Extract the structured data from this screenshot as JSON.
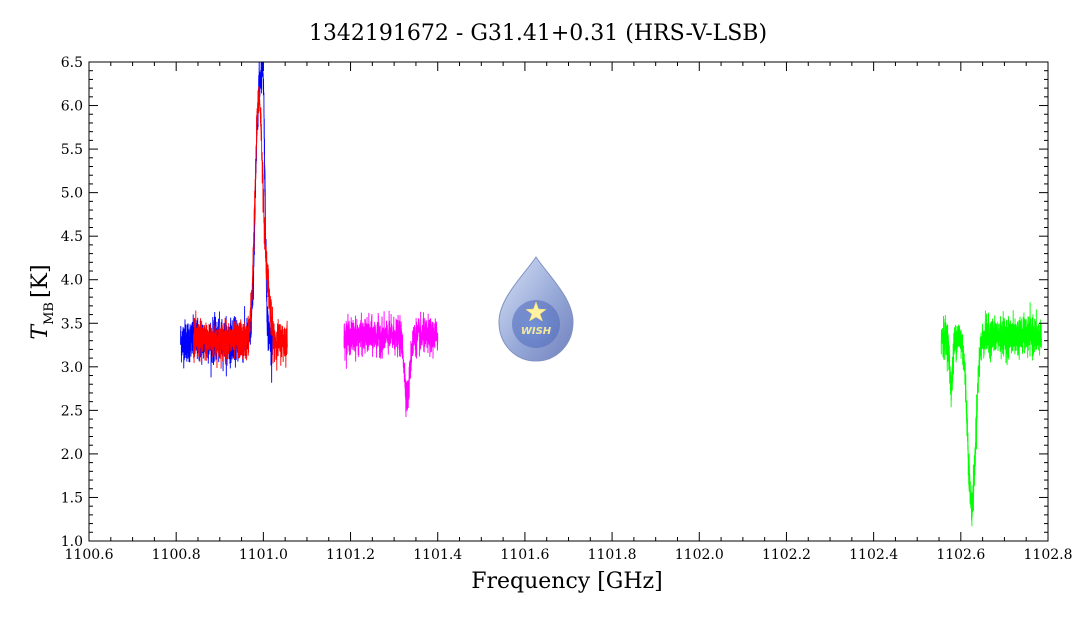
{
  "chart_data": {
    "type": "line",
    "title": "1342191672 - G31.41+0.31 (HRS-V-LSB)",
    "xlabel": "Frequency [GHz]",
    "ylabel_main": "T",
    "ylabel_sub": "MB",
    "ylabel_unit": "[K]",
    "xlim": [
      1100.6,
      1102.8
    ],
    "ylim": [
      1.0,
      6.5
    ],
    "x_ticks": [
      "1100.6",
      "1100.8",
      "1101.0",
      "1101.2",
      "1101.4",
      "1101.6",
      "1101.8",
      "1102.0",
      "1102.2",
      "1102.4",
      "1102.6",
      "1102.8"
    ],
    "y_ticks": [
      "1.0",
      "1.5",
      "2.0",
      "2.5",
      "3.0",
      "3.5",
      "4.0",
      "4.5",
      "5.0",
      "5.5",
      "6.0",
      "6.5"
    ],
    "logo_text": "WISH",
    "series": [
      {
        "color": "#0000ff",
        "x_range": [
          1100.81,
          1101.02
        ],
        "baseline": 3.3,
        "noise": 0.22,
        "features": [
          {
            "type": "emission",
            "center": 1100.99,
            "width": 0.008,
            "peak": 6.15
          },
          {
            "type": "emission",
            "center": 1101.0,
            "width": 0.004,
            "peak": 5.0
          }
        ]
      },
      {
        "color": "#ff0000",
        "x_range": [
          1100.84,
          1101.055
        ],
        "baseline": 3.3,
        "noise": 0.2,
        "features": [
          {
            "type": "emission",
            "center": 1100.99,
            "width": 0.009,
            "peak": 6.1
          },
          {
            "type": "emission",
            "center": 1101.01,
            "width": 0.006,
            "peak": 3.8
          }
        ]
      },
      {
        "color": "#ff00ff",
        "x_range": [
          1101.185,
          1101.4
        ],
        "baseline": 3.35,
        "noise": 0.18,
        "features": [
          {
            "type": "absorption",
            "center": 1101.33,
            "width": 0.006,
            "depth": 2.65
          }
        ]
      },
      {
        "color": "#00ff00",
        "x_range": [
          1102.555,
          1102.785
        ],
        "baseline": 3.35,
        "noise": 0.2,
        "features": [
          {
            "type": "absorption",
            "center": 1102.578,
            "width": 0.004,
            "depth": 2.8
          },
          {
            "type": "absorption",
            "center": 1102.625,
            "width": 0.009,
            "depth": 1.4
          }
        ]
      }
    ]
  }
}
